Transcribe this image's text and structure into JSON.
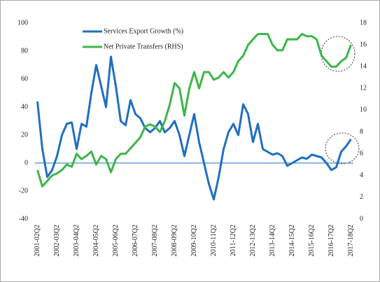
{
  "chart_data": {
    "type": "line",
    "categories": [
      "2001-02Q2",
      null,
      null,
      null,
      "2002-03Q2",
      null,
      null,
      null,
      "2003-04Q2",
      null,
      null,
      null,
      "2004-05Q2",
      null,
      null,
      null,
      "2005-06Q2",
      null,
      null,
      null,
      "2006-07Q2",
      null,
      null,
      null,
      "2007-08Q2",
      null,
      null,
      null,
      "2008-09Q2",
      null,
      null,
      null,
      "2009-10Q2",
      null,
      null,
      null,
      "2010-11Q2",
      null,
      null,
      null,
      "2011-12Q2",
      null,
      null,
      null,
      "2012-13Q2",
      null,
      null,
      null,
      "2013-14Q2",
      null,
      null,
      null,
      "2014-15Q2",
      null,
      null,
      null,
      "2015-16Q2",
      null,
      null,
      null,
      "2016-17Q2",
      null,
      null,
      null,
      "2017-18Q2"
    ],
    "series": [
      {
        "name": "Services Export Growth (%)",
        "color": "#1f6fc0",
        "values": [
          44,
          10,
          -10,
          -5,
          5,
          20,
          28,
          29,
          10,
          28,
          26,
          50,
          70,
          55,
          40,
          76,
          55,
          30,
          27,
          45,
          35,
          32,
          25,
          22,
          25,
          30,
          22,
          25,
          30,
          20,
          5,
          20,
          35,
          15,
          0,
          -15,
          -26,
          -10,
          10,
          22,
          28,
          20,
          42,
          35,
          15,
          28,
          10,
          8,
          6,
          7,
          5,
          -2,
          0,
          2,
          4,
          3,
          6,
          5,
          4,
          0,
          -5,
          -3,
          8,
          12,
          17
        ]
      },
      {
        "name": "Net Private Transfers (RHS)",
        "color": "#3db54a",
        "axis": "y2",
        "values": [
          4.5,
          3,
          3.5,
          4,
          4.2,
          4.5,
          5,
          4.8,
          6,
          5.5,
          5.8,
          6.2,
          5,
          5.8,
          5.5,
          4.3,
          5.5,
          6,
          6,
          6.5,
          7,
          7.5,
          8.5,
          8.7,
          8.5,
          8,
          9,
          10.5,
          12.5,
          12,
          9.5,
          12,
          13.5,
          12,
          13.5,
          13.5,
          12.8,
          13,
          13.5,
          13,
          13.5,
          14.5,
          15,
          16,
          16.5,
          17,
          17,
          17,
          16,
          15.5,
          15.5,
          16.5,
          16.5,
          16.5,
          17,
          16.8,
          16.8,
          16.5,
          15,
          14.5,
          14,
          14,
          14.5,
          14.8,
          16
        ]
      }
    ],
    "ylim": [
      -40,
      100
    ],
    "yticks": [
      -40,
      -20,
      0,
      20,
      40,
      60,
      80,
      100
    ],
    "y2lim": [
      0,
      18
    ],
    "y2ticks": [
      0,
      2,
      4,
      6,
      8,
      10,
      12,
      14,
      16,
      18
    ],
    "legend": "top-left"
  }
}
